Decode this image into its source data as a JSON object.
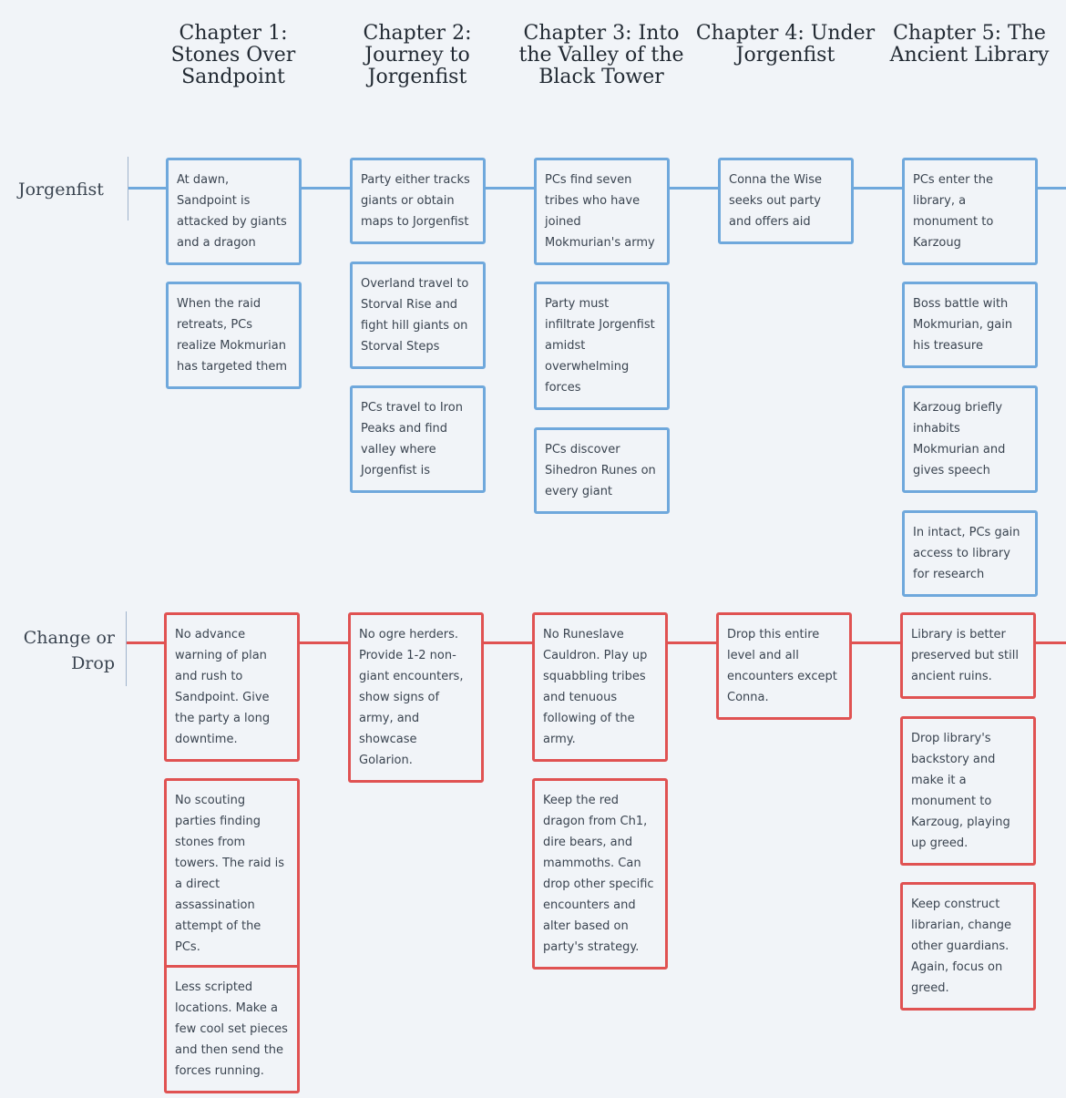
{
  "chapters": [
    {
      "title": "Chapter 1: Stones Over Sandpoint"
    },
    {
      "title": "Chapter 2: Journey to Jorgenfist"
    },
    {
      "title": "Chapter 3: Into the Valley of the Black Tower"
    },
    {
      "title": "Chapter 4: Under Jorgenfist"
    },
    {
      "title": "Chapter 5: The Ancient Library"
    }
  ],
  "colors": {
    "jorgenfist_lane": "#6fa8dc",
    "change_lane": "#e05252",
    "background": "#f1f4f8"
  },
  "lanes": {
    "jorgenfist": {
      "label": "Jorgenfist",
      "columns": [
        [
          "At dawn, Sandpoint is attacked by giants and a dragon",
          "When the raid retreats, PCs realize Mokmurian has targeted them"
        ],
        [
          "Party either tracks giants or obtain maps to Jorgenfist",
          "Overland travel to Storval Rise and fight hill giants on Storval Steps",
          "PCs travel to Iron Peaks and find valley where Jorgenfist is"
        ],
        [
          "PCs find seven tribes who have joined Mokmurian's army",
          "Party must infiltrate Jorgenfist amidst overwhelming forces",
          "PCs discover Sihedron Runes on every giant"
        ],
        [
          "Conna the Wise seeks out party and offers aid"
        ],
        [
          "PCs enter the library, a monument to Karzoug",
          "Boss battle with Mokmurian, gain his treasure",
          "Karzoug briefly inhabits Mokmurian and gives speech",
          "In intact, PCs gain access to library for research"
        ]
      ]
    },
    "change": {
      "label": "Change or Drop",
      "columns": [
        [
          "No advance warning of plan and rush to Sandpoint. Give the party a long downtime.",
          "No scouting parties finding stones from towers. The raid is a direct assassination attempt of the PCs.",
          "Less scripted locations. Make a few cool set pieces and then send the forces running."
        ],
        [
          "No ogre herders. Provide 1-2 non-giant encounters, show signs of army, and showcase Golarion."
        ],
        [
          "No Runeslave Cauldron. Play up squabbling tribes and tenuous following of the army.",
          "Keep the red dragon from Ch1, dire bears, and mammoths. Can drop other specific encounters and alter based on party's strategy."
        ],
        [
          "Drop this entire level and all encounters except Conna."
        ],
        [
          "Library is better preserved but still ancient ruins.",
          "Drop library's backstory and make it a monument to Karzoug, playing up greed.",
          "Keep construct librarian, change other guardians. Again, focus on greed."
        ]
      ]
    }
  }
}
